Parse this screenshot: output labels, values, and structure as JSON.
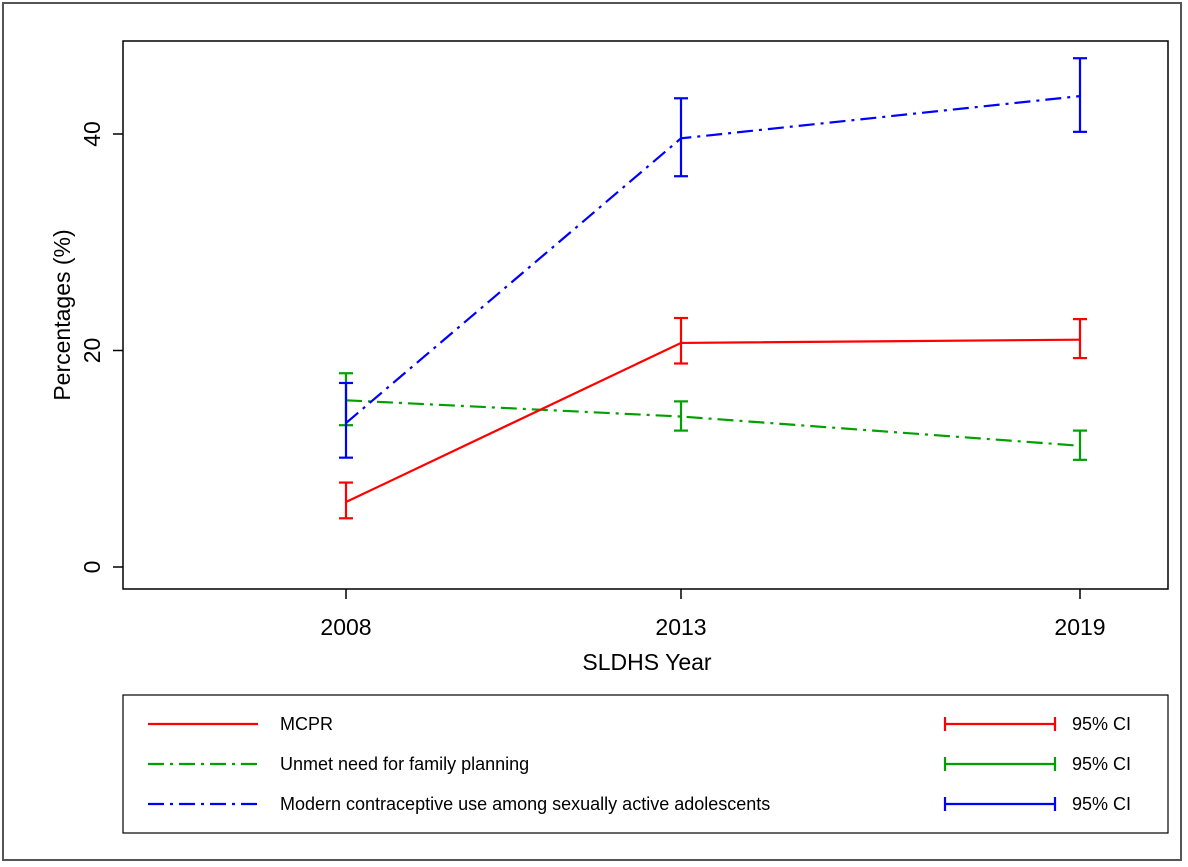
{
  "chart_data": {
    "type": "line",
    "title": "",
    "xlabel": "SLDHS Year",
    "ylabel": "Percentages (%)",
    "x": [
      "2008",
      "2013",
      "2019"
    ],
    "y_ticks": [
      "0",
      "20",
      "40"
    ],
    "ylim": [
      -3,
      49
    ],
    "grid": false,
    "legend_position": "bottom",
    "series": [
      {
        "name": "MCPR",
        "color": "#ff0000",
        "line_style": "solid",
        "values": [
          6.0,
          20.7,
          21.0
        ],
        "ci_low": [
          4.5,
          18.8,
          19.3
        ],
        "ci_high": [
          7.8,
          23.0,
          22.9
        ],
        "ci_label": "95% CI"
      },
      {
        "name": "Unmet need for family planning",
        "color": "#00a000",
        "line_style": "dash-dot",
        "values": [
          15.4,
          13.9,
          11.2
        ],
        "ci_low": [
          13.1,
          12.6,
          9.9
        ],
        "ci_high": [
          17.9,
          15.3,
          12.6
        ],
        "ci_label": "95% CI"
      },
      {
        "name": "Modern contraceptive use among sexually active adolescents",
        "color": "#0000ff",
        "line_style": "dash-dot",
        "values": [
          13.3,
          39.6,
          43.5
        ],
        "ci_low": [
          10.1,
          36.1,
          40.2
        ],
        "ci_high": [
          17.0,
          43.3,
          47.0
        ],
        "ci_label": "95% CI"
      }
    ]
  }
}
